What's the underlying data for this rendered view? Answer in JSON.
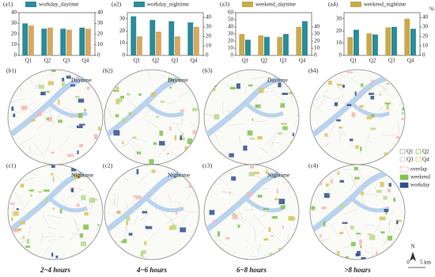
{
  "chart_data": [
    {
      "type": "bar",
      "panel": "(a1)",
      "categories": [
        "Q1",
        "Q2",
        "Q3",
        "Q4"
      ],
      "series": [
        {
          "name": "workday_daytime",
          "color": "#2a8c9a",
          "values": [
            30,
            25,
            25,
            26
          ]
        },
        {
          "color": "#d8a860",
          "axis": "y2",
          "values": [
            28,
            26,
            24,
            25
          ]
        }
      ],
      "ylim": [
        0,
        40
      ],
      "yticks": [
        0,
        10,
        20,
        30,
        40
      ],
      "y2lim": [
        0,
        40
      ],
      "y2ticks": [
        0,
        10,
        20,
        30,
        40
      ]
    },
    {
      "type": "bar",
      "panel": "(a2)",
      "categories": [
        "Q1",
        "Q2",
        "Q3",
        "Q4"
      ],
      "series": [
        {
          "name": "workday_nightime",
          "color": "#2a8c9a",
          "values": [
            32,
            29,
            28,
            27
          ]
        },
        {
          "color": "#d8a860",
          "axis": "y2",
          "values": [
            20,
            25,
            20,
            30
          ]
        }
      ],
      "ylim": [
        0,
        35
      ],
      "yticks": [
        0,
        10,
        20,
        30
      ],
      "y2lim": [
        0,
        45
      ],
      "y2ticks": [
        0,
        10,
        20,
        30,
        40
      ]
    },
    {
      "type": "bar",
      "panel": "(a3)",
      "categories": [
        "Q1",
        "Q2",
        "Q3",
        "Q4"
      ],
      "series": [
        {
          "name": "weekend_daytime",
          "color": "#c9a94c",
          "values": [
            30,
            28,
            26,
            40
          ]
        },
        {
          "color": "#2a8c9a",
          "axis": "y2",
          "values": [
            22,
            26,
            30,
            48
          ]
        }
      ],
      "ylim": [
        0,
        60
      ],
      "yticks": [
        0,
        10,
        20,
        30,
        40,
        50,
        60
      ],
      "y2lim": [
        0,
        60
      ],
      "y2ticks": [
        0,
        10,
        20,
        30,
        40
      ]
    },
    {
      "type": "bar",
      "panel": "(a4)",
      "categories": [
        "Q1",
        "Q2",
        "Q3",
        "Q4"
      ],
      "series": [
        {
          "name": "weekend_nightime",
          "color": "#c9a94c",
          "values": [
            15,
            18,
            23,
            30
          ]
        },
        {
          "color": "#2a8c9a",
          "axis": "y2",
          "values": [
            27,
            22,
            30,
            28
          ]
        }
      ],
      "ylim": [
        0,
        35
      ],
      "yticks": [
        0,
        10,
        20,
        30
      ],
      "y2lim": [
        0,
        45
      ],
      "y2ticks": [
        0,
        10,
        20,
        30,
        40
      ],
      "y2label": "%"
    }
  ],
  "maps": {
    "panels": [
      {
        "label": "(b1)",
        "period": "Daytime"
      },
      {
        "label": "(b2)",
        "period": "Daytime"
      },
      {
        "label": "(b3)",
        "period": "Daytime"
      },
      {
        "label": "(b4)"
      },
      {
        "label": "(c1)",
        "period": "Nightime"
      },
      {
        "label": "(c2)",
        "period": "Nightime"
      },
      {
        "label": "(c3)",
        "period": "Nightime"
      },
      {
        "label": "(c4)"
      }
    ],
    "durations": [
      "2~4 hours",
      "4~6 hours",
      "6~8 hours",
      ">8 hours"
    ],
    "legend": [
      "Q1",
      "Q2",
      "Q3",
      "Q4",
      "overlap",
      "weekend",
      "workday"
    ],
    "north": "N",
    "scale": [
      "0",
      "5 km"
    ]
  }
}
